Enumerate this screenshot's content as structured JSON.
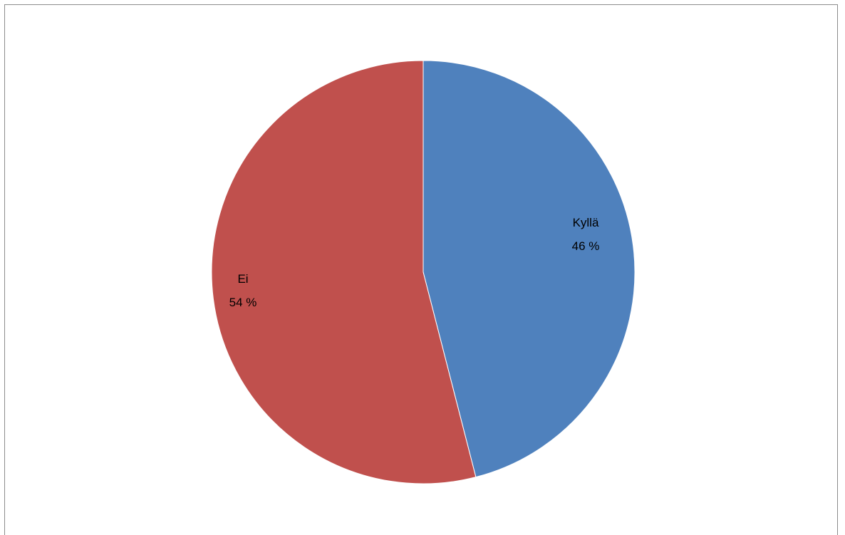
{
  "chart_data": {
    "type": "pie",
    "title": "",
    "slices": [
      {
        "name": "Kyllä",
        "percent_label": "46 %",
        "value": 46,
        "color": "#4f81bd"
      },
      {
        "name": "Ei",
        "percent_label": "54 %",
        "value": 54,
        "color": "#c0504d"
      }
    ],
    "start_angle_deg": 0,
    "direction": "clockwise",
    "legend": "none",
    "data_labels": "category-and-percent"
  }
}
